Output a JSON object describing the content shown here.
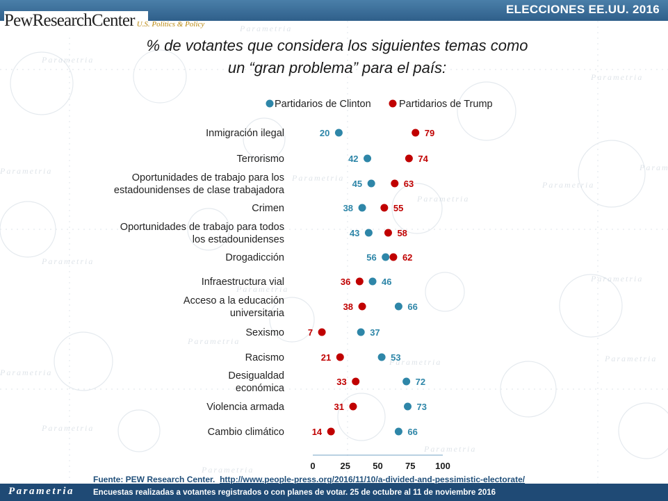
{
  "header": {
    "title": "ELECCIONES EE.UU. 2016"
  },
  "logo": {
    "main": "PewResearchCenter",
    "sub": "U.S. Politics & Policy"
  },
  "watermark": {
    "text": "Parametria"
  },
  "footer": {
    "brand": "Parametria",
    "source_prefix": "Fuente: PEW Research Center.",
    "source_url": "http://www.people-press.org/2016/11/10/a-divided-and-pessimistic-electorate/",
    "note": "Encuestas realizadas a votantes registrados o con planes de votar. 25 de octubre al 11 de noviembre 2016"
  },
  "colors": {
    "clinton": "#2e86a8",
    "trump": "#c00000",
    "header": "#2f5f8a",
    "footer": "#1f4a75",
    "text_blue": "#1f4e79"
  },
  "chart_data": {
    "type": "scatter",
    "subtype": "dot-plot",
    "title": "% de votantes que considera los siguientes temas como un “gran problema” para el país:",
    "legend": {
      "placement": "top-center",
      "entries": [
        "Partidarios de Clinton",
        "Partidarios de Trump"
      ]
    },
    "xlim": [
      0,
      100
    ],
    "xticks": [
      0,
      25,
      50,
      75,
      100
    ],
    "grid": false,
    "categories": [
      [
        "Inmigración ilegal"
      ],
      [
        "Terrorismo"
      ],
      [
        "Oportunidades de trabajo para los",
        "estadounidenses de clase trabajadora"
      ],
      [
        "Crimen"
      ],
      [
        "Oportunidades de trabajo para todos",
        "los estadounidenses"
      ],
      [
        "Drogadicción"
      ],
      [
        "Infraestructura vial"
      ],
      [
        "Acceso a la educación",
        "universitaria"
      ],
      [
        "Sexismo"
      ],
      [
        "Racismo"
      ],
      [
        "Desigualdad",
        "económica"
      ],
      [
        "Violencia armada"
      ],
      [
        "Cambio climático"
      ]
    ],
    "series": [
      {
        "name": "Partidarios de Clinton",
        "color": "#2e86a8",
        "values": [
          20,
          42,
          45,
          38,
          43,
          56,
          46,
          66,
          37,
          53,
          72,
          73,
          66
        ]
      },
      {
        "name": "Partidarios de Trump",
        "color": "#c00000",
        "values": [
          79,
          74,
          63,
          55,
          58,
          62,
          36,
          38,
          7,
          21,
          33,
          31,
          14
        ]
      }
    ]
  }
}
